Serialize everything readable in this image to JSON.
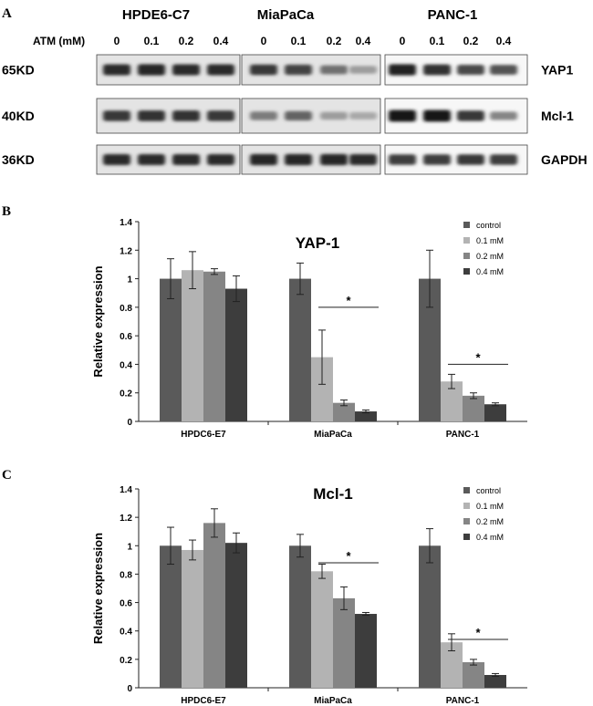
{
  "blot": {
    "panel_label": "A",
    "cell_lines": [
      "HPDE6-C7",
      "MiaPaCa",
      "PANC-1"
    ],
    "dose_label": "ATM (mM)",
    "doses": [
      "0",
      "0.1",
      "0.2",
      "0.4"
    ],
    "rows": [
      {
        "kd": "65KD",
        "protein": "YAP1",
        "intensity": [
          [
            0.85,
            0.88,
            0.86,
            0.85
          ],
          [
            0.8,
            0.75,
            0.55,
            0.35
          ],
          [
            0.9,
            0.82,
            0.72,
            0.68
          ]
        ]
      },
      {
        "kd": "40KD",
        "protein": "Mcl-1",
        "intensity": [
          [
            0.8,
            0.82,
            0.82,
            0.8
          ],
          [
            0.5,
            0.6,
            0.35,
            0.3
          ],
          [
            0.95,
            0.95,
            0.8,
            0.45
          ]
        ]
      },
      {
        "kd": "36KD",
        "protein": "GAPDH",
        "intensity": [
          [
            0.85,
            0.85,
            0.85,
            0.85
          ],
          [
            0.88,
            0.88,
            0.88,
            0.85
          ],
          [
            0.78,
            0.78,
            0.8,
            0.78
          ]
        ]
      }
    ]
  },
  "chart_data": [
    {
      "type": "bar",
      "panel_label": "B",
      "title": "YAP-1",
      "ylabel": "Relative expression",
      "ylim": [
        0,
        1.4
      ],
      "yticks": [
        "0",
        "0.2",
        "0.4",
        "0.6",
        "0.8",
        "1",
        "1.2",
        "1.4"
      ],
      "categories": [
        "HPDC6-E7",
        "MiaPaCa",
        "PANC-1"
      ],
      "legend_position": "top-right",
      "series": [
        {
          "name": "control",
          "color": "#5a5a5a",
          "values": [
            1.0,
            1.0,
            1.0
          ],
          "errors": [
            0.14,
            0.11,
            0.2
          ]
        },
        {
          "name": "0.1 mM",
          "color": "#b3b3b3",
          "values": [
            1.06,
            0.45,
            0.28
          ],
          "errors": [
            0.13,
            0.19,
            0.05
          ]
        },
        {
          "name": "0.2 mM",
          "color": "#858585",
          "values": [
            1.05,
            0.13,
            0.18
          ],
          "errors": [
            0.02,
            0.02,
            0.02
          ]
        },
        {
          "name": "0.4 mM",
          "color": "#3d3d3d",
          "values": [
            0.93,
            0.07,
            0.12
          ],
          "errors": [
            0.09,
            0.01,
            0.01
          ]
        }
      ],
      "significance": [
        {
          "category": 1,
          "from_series": 1,
          "to_series": 3,
          "y": 0.8,
          "label": "*"
        },
        {
          "category": 2,
          "from_series": 1,
          "to_series": 3,
          "y": 0.4,
          "label": "*"
        }
      ]
    },
    {
      "type": "bar",
      "panel_label": "C",
      "title": "Mcl-1",
      "ylabel": "Relative expression",
      "ylim": [
        0,
        1.4
      ],
      "yticks": [
        "0",
        "0.2",
        "0.4",
        "0.6",
        "0.8",
        "1",
        "1.2",
        "1.4"
      ],
      "categories": [
        "HPDC6-E7",
        "MiaPaCa",
        "PANC-1"
      ],
      "legend_position": "top-right",
      "series": [
        {
          "name": "control",
          "color": "#5a5a5a",
          "values": [
            1.0,
            1.0,
            1.0
          ],
          "errors": [
            0.13,
            0.08,
            0.12
          ]
        },
        {
          "name": "0.1 mM",
          "color": "#b3b3b3",
          "values": [
            0.97,
            0.82,
            0.32
          ],
          "errors": [
            0.07,
            0.05,
            0.06
          ]
        },
        {
          "name": "0.2 mM",
          "color": "#858585",
          "values": [
            1.16,
            0.63,
            0.18
          ],
          "errors": [
            0.1,
            0.08,
            0.02
          ]
        },
        {
          "name": "0.4 mM",
          "color": "#3d3d3d",
          "values": [
            1.02,
            0.52,
            0.09
          ],
          "errors": [
            0.07,
            0.01,
            0.01
          ]
        }
      ],
      "significance": [
        {
          "category": 1,
          "from_series": 1,
          "to_series": 3,
          "y": 0.88,
          "label": "*"
        },
        {
          "category": 2,
          "from_series": 1,
          "to_series": 3,
          "y": 0.34,
          "label": "*"
        }
      ]
    }
  ]
}
